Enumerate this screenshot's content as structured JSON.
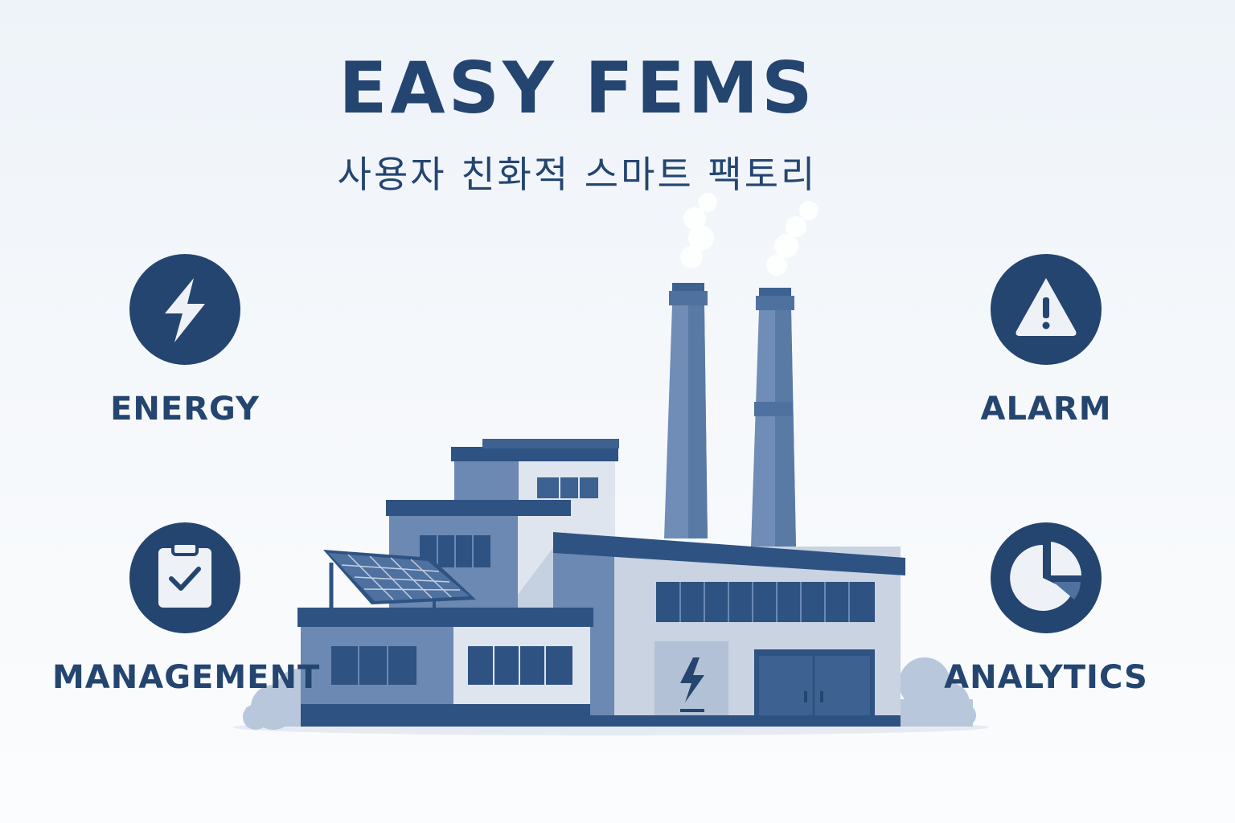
{
  "header": {
    "title": "EASY FEMS",
    "subtitle": "사용자 친화적 스마트 팩토리"
  },
  "features": [
    {
      "label": "ENERGY",
      "icon": "lightning-bolt-icon"
    },
    {
      "label": "ALARM",
      "icon": "warning-triangle-icon"
    },
    {
      "label": "MANAGEMENT",
      "icon": "clipboard-check-icon"
    },
    {
      "label": "ANALYTICS",
      "icon": "pie-chart-icon"
    }
  ],
  "colors": {
    "primary": "#24456f",
    "mid": "#4f71a0",
    "light": "#c5d0e0",
    "background": "#f3f6fa"
  }
}
